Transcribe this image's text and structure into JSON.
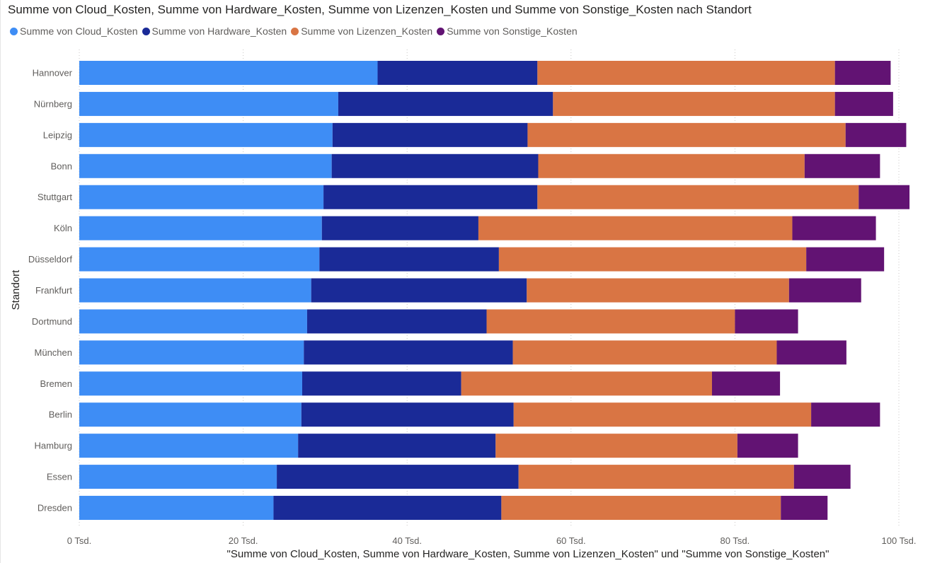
{
  "chart_data": {
    "type": "bar",
    "orientation": "horizontal",
    "stacked": true,
    "title": "Summe von Cloud_Kosten, Summe von Hardware_Kosten, Summe von Lizenzen_Kosten und Summe von Sonstige_Kosten nach Standort",
    "xlabel": "\"Summe von Cloud_Kosten, Summe von Hardware_Kosten, Summe von Lizenzen_Kosten\" und \"Summe von Sonstige_Kosten\"",
    "ylabel": "Standort",
    "xlim": [
      0,
      100000
    ],
    "xticks": [
      {
        "value": 0,
        "label": "0 Tsd."
      },
      {
        "value": 20000,
        "label": "20 Tsd."
      },
      {
        "value": 40000,
        "label": "40 Tsd."
      },
      {
        "value": 60000,
        "label": "60 Tsd."
      },
      {
        "value": 80000,
        "label": "80 Tsd."
      },
      {
        "value": 100000,
        "label": "100 Tsd."
      }
    ],
    "grid": "vertical-dotted",
    "legend_position": "top-left",
    "categories": [
      "Hannover",
      "Nürnberg",
      "Leipzig",
      "Bonn",
      "Stuttgart",
      "Köln",
      "Düsseldorf",
      "Frankfurt",
      "Dortmund",
      "München",
      "Bremen",
      "Berlin",
      "Hamburg",
      "Essen",
      "Dresden"
    ],
    "series": [
      {
        "name": "Summe von Cloud_Kosten",
        "color": "#3e8df5",
        "values": [
          36400,
          31600,
          30900,
          30800,
          29800,
          29600,
          29300,
          28300,
          27800,
          27400,
          27200,
          27100,
          26700,
          24100,
          23700
        ]
      },
      {
        "name": "Summe von Hardware_Kosten",
        "color": "#1a2a97",
        "values": [
          19500,
          26200,
          23800,
          25200,
          26100,
          19100,
          21900,
          26300,
          21900,
          25500,
          19400,
          25900,
          24100,
          29500,
          27800
        ]
      },
      {
        "name": "Summe von Lizenzen_Kosten",
        "color": "#d97544",
        "values": [
          36300,
          34400,
          38800,
          32500,
          39200,
          38300,
          37500,
          32000,
          30300,
          32200,
          30600,
          36300,
          29500,
          33600,
          34100
        ]
      },
      {
        "name": "Summe von Sonstige_Kosten",
        "color": "#621373",
        "values": [
          6800,
          7100,
          7400,
          9200,
          6200,
          10200,
          9500,
          8800,
          7700,
          8500,
          8300,
          8400,
          7400,
          6900,
          5700
        ]
      }
    ]
  }
}
